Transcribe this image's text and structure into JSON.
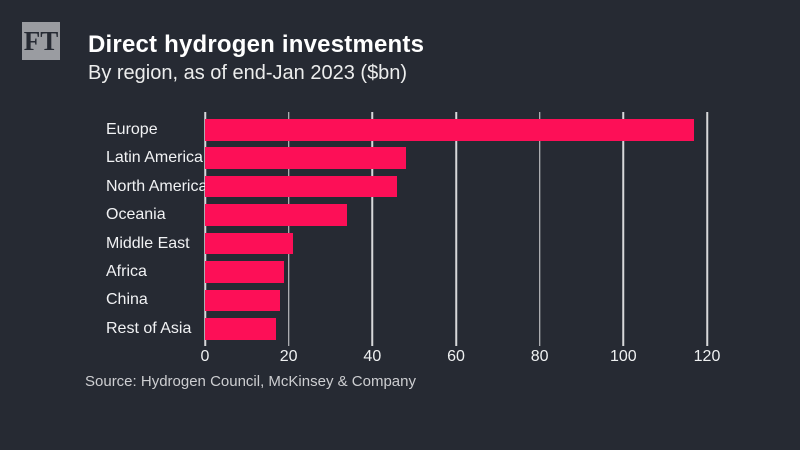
{
  "header": {
    "logo_text": "FT",
    "title": "Direct hydrogen investments",
    "subtitle": "By region, as of end-Jan 2023 ($bn)"
  },
  "chart_data": {
    "type": "bar",
    "orientation": "horizontal",
    "title": "Direct hydrogen investments",
    "subtitle": "By region, as of end-Jan 2023 ($bn)",
    "categories": [
      "Europe",
      "Latin America",
      "North America",
      "Oceania",
      "Middle East",
      "Africa",
      "China",
      "Rest of Asia"
    ],
    "values": [
      117,
      48,
      46,
      34,
      21,
      19,
      18,
      17
    ],
    "xlabel": "",
    "ylabel": "",
    "xlim": [
      0,
      120
    ],
    "xticks": [
      0,
      20,
      40,
      60,
      80,
      100,
      120
    ],
    "grid": "vertical",
    "legend": "none",
    "bar_color": "#fd0f57"
  },
  "source": "Source: Hydrogen Council, McKinsey & Company",
  "colors": {
    "background": "#262a33",
    "bar": "#fd0f57",
    "logo_background": "#9a9ca1",
    "logo_text": "#262a33",
    "gridline": "rgba(255,255,255,0.82)",
    "title_text": "#ffffff",
    "source_text": "#cdced1"
  }
}
